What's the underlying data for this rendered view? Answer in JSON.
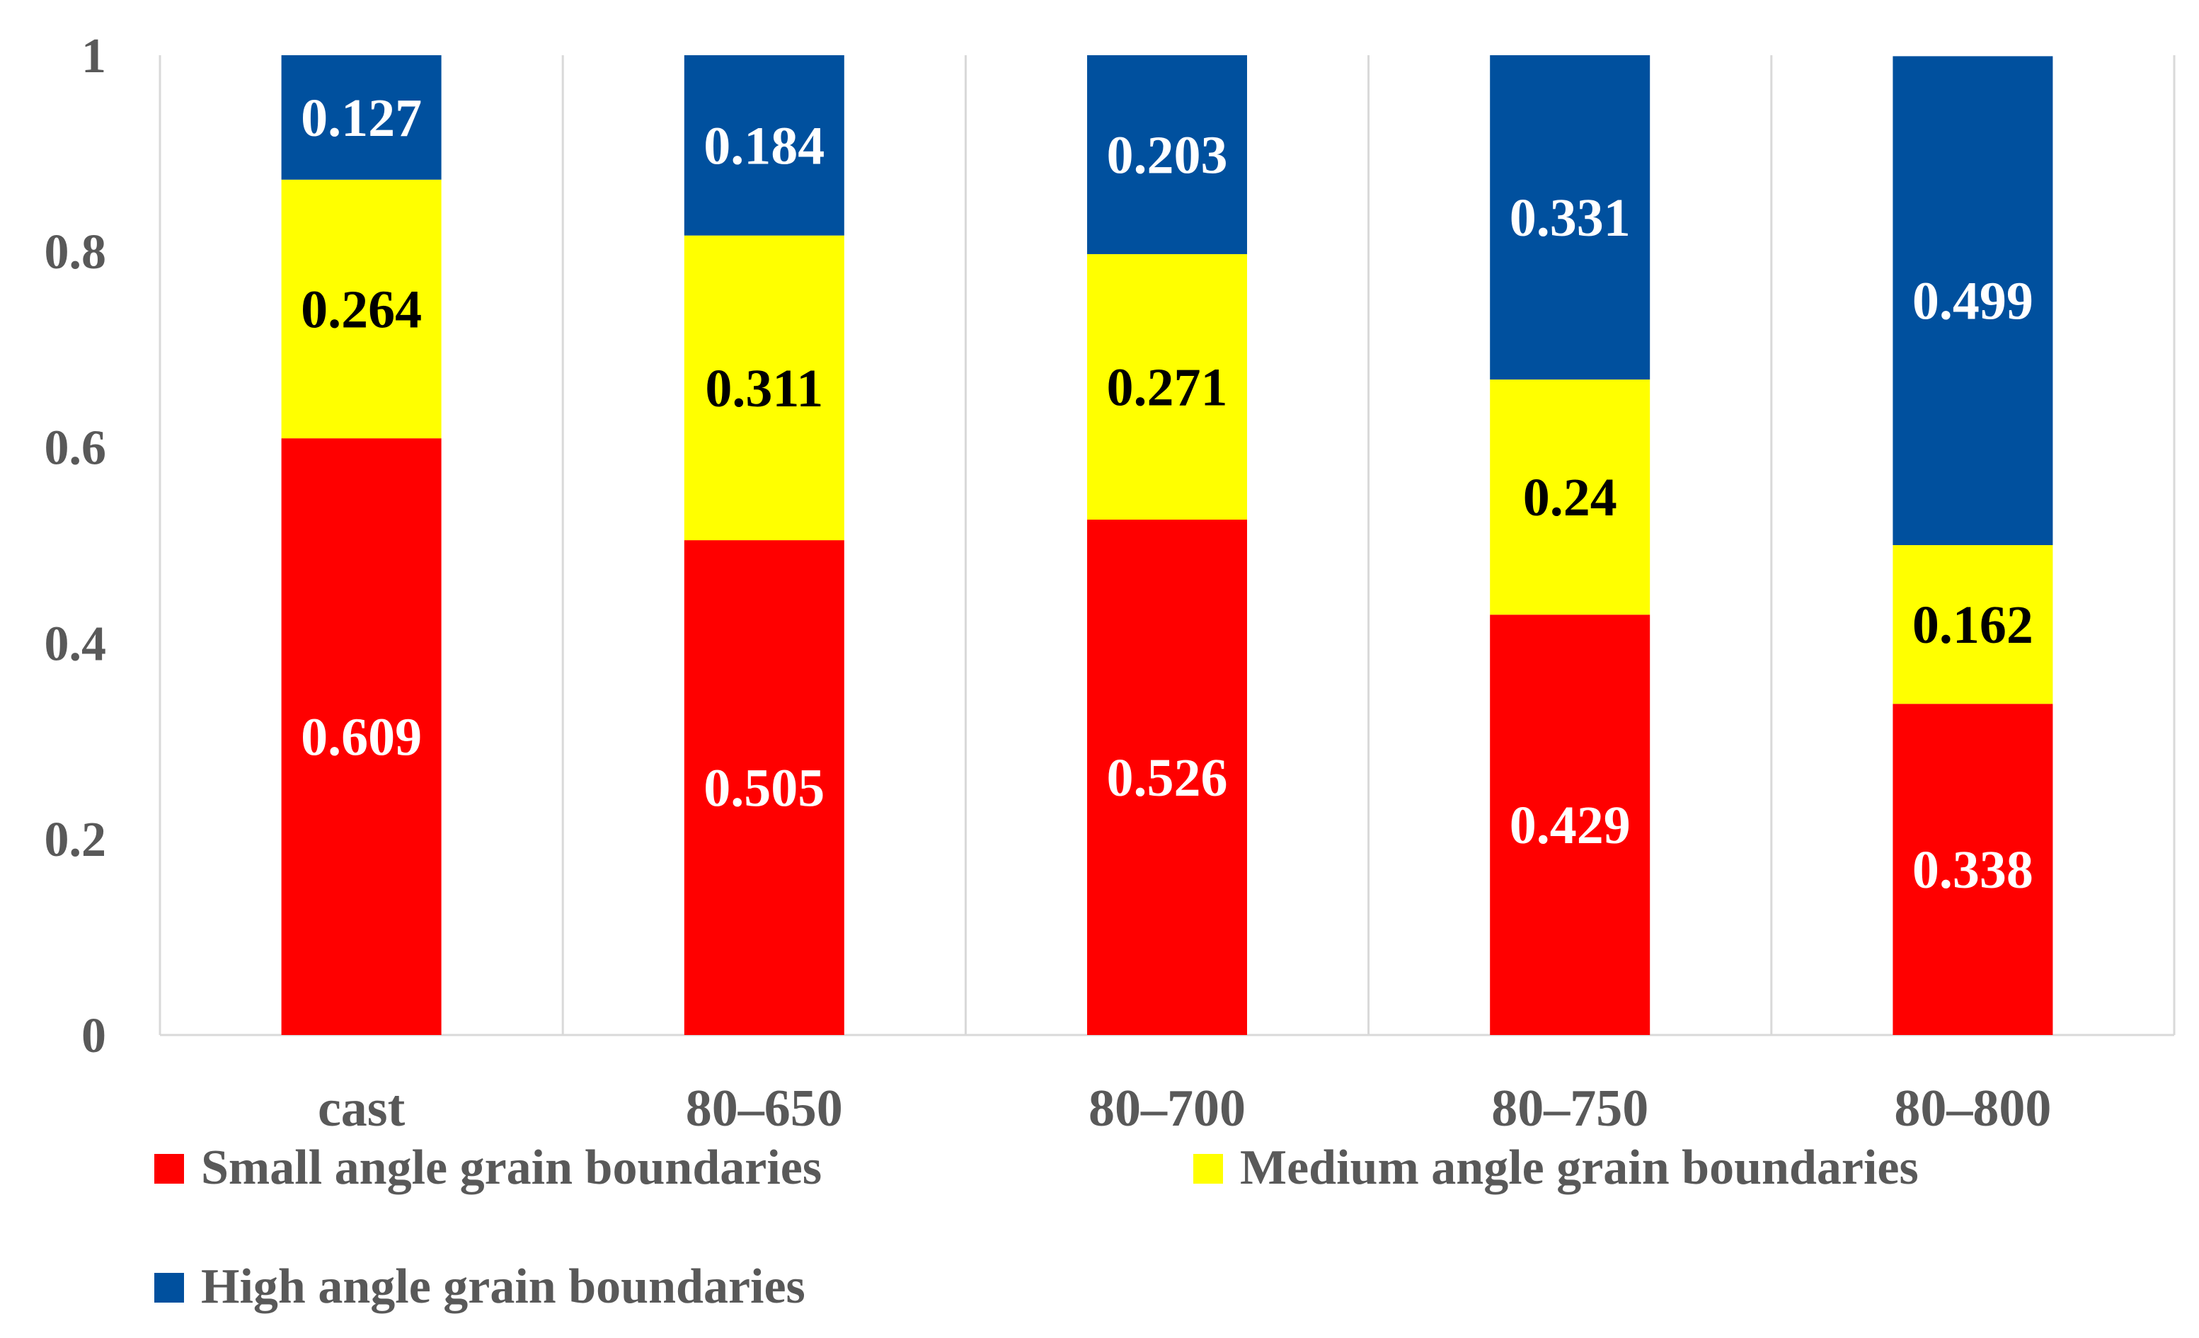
{
  "chart_data": {
    "type": "bar",
    "stacked": true,
    "title": "",
    "xlabel": "",
    "ylabel": "",
    "ylim": [
      0,
      1
    ],
    "yticks": [
      0,
      0.2,
      0.4,
      0.6,
      0.8,
      1
    ],
    "ytick_labels": [
      "0",
      "0.2",
      "0.4",
      "0.6",
      "0.8",
      "1"
    ],
    "categories": [
      "cast",
      "80–650",
      "80–700",
      "80–750",
      "80–800"
    ],
    "series": [
      {
        "name": "Small angle grain boundaries",
        "color": "#ff0000",
        "label_color": "#ffffff",
        "values": [
          0.609,
          0.505,
          0.526,
          0.429,
          0.338
        ],
        "value_labels": [
          "0.609",
          "0.505",
          "0.526",
          "0.429",
          "0.338"
        ]
      },
      {
        "name": "Medium angle grain boundaries",
        "color": "#ffff00",
        "label_color": "#000000",
        "values": [
          0.264,
          0.311,
          0.271,
          0.24,
          0.162
        ],
        "value_labels": [
          "0.264",
          "0.311",
          "0.271",
          "0.24",
          "0.162"
        ]
      },
      {
        "name": "High angle grain boundaries",
        "color": "#00509e",
        "label_color": "#ffffff",
        "values": [
          0.127,
          0.184,
          0.203,
          0.331,
          0.499
        ],
        "value_labels": [
          "0.127",
          "0.184",
          "0.203",
          "0.331",
          "0.499"
        ]
      }
    ],
    "grid": "vertical separators between categories",
    "legend_position": "bottom"
  }
}
